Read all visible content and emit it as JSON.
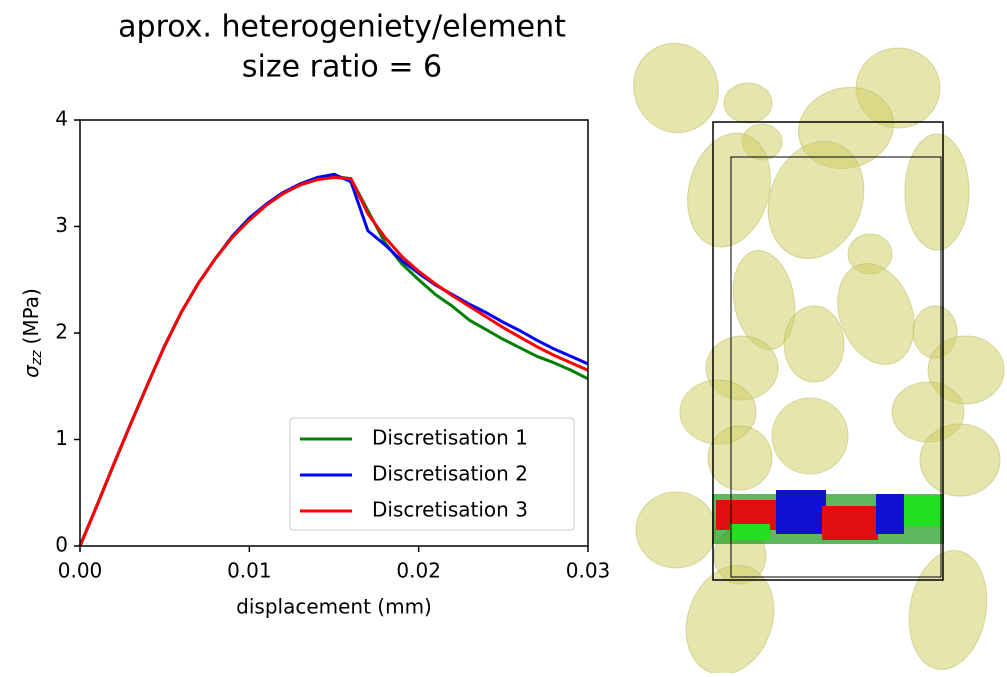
{
  "chart_data": {
    "type": "line",
    "title": [
      "aprox. heterogeniety/element",
      "size ratio = 6"
    ],
    "xlabel": "displacement (mm)",
    "ylabel": [
      "σ",
      "zz",
      "(MPa)"
    ],
    "x": [
      0,
      0.001,
      0.002,
      0.003,
      0.004,
      0.005,
      0.006,
      0.007,
      0.008,
      0.009,
      0.01,
      0.011,
      0.012,
      0.013,
      0.014,
      0.015,
      0.016,
      0.017,
      0.018,
      0.019,
      0.02,
      0.021,
      0.022,
      0.023,
      0.024,
      0.025,
      0.026,
      0.027,
      0.028,
      0.029,
      0.03
    ],
    "series": [
      {
        "name": "Discretisation 1",
        "color": "#008000",
        "values": [
          0,
          0.38,
          0.77,
          1.15,
          1.52,
          1.88,
          2.2,
          2.47,
          2.7,
          2.9,
          3.06,
          3.2,
          3.31,
          3.39,
          3.44,
          3.47,
          3.45,
          3.15,
          2.85,
          2.65,
          2.5,
          2.36,
          2.25,
          2.12,
          2.03,
          1.94,
          1.86,
          1.78,
          1.72,
          1.65,
          1.57
        ]
      },
      {
        "name": "Discretisation 2",
        "color": "#0000ff",
        "values": [
          0,
          0.38,
          0.77,
          1.15,
          1.52,
          1.88,
          2.2,
          2.47,
          2.7,
          2.91,
          3.08,
          3.21,
          3.32,
          3.4,
          3.46,
          3.49,
          3.42,
          2.96,
          2.83,
          2.68,
          2.56,
          2.45,
          2.36,
          2.27,
          2.19,
          2.1,
          2.02,
          1.93,
          1.85,
          1.78,
          1.71
        ]
      },
      {
        "name": "Discretisation 3",
        "color": "#ff0000",
        "values": [
          0,
          0.38,
          0.77,
          1.15,
          1.52,
          1.88,
          2.2,
          2.47,
          2.7,
          2.9,
          3.06,
          3.2,
          3.31,
          3.39,
          3.44,
          3.46,
          3.45,
          3.12,
          2.9,
          2.72,
          2.58,
          2.46,
          2.35,
          2.25,
          2.15,
          2.05,
          1.96,
          1.87,
          1.79,
          1.72,
          1.65
        ]
      }
    ],
    "xlim": [
      0,
      0.03
    ],
    "ylim": [
      0,
      4
    ],
    "xticks": [
      {
        "value": 0,
        "label": "0.00"
      },
      0.01,
      0.02,
      0.03
    ],
    "yticks": [
      0,
      1,
      2,
      3,
      4
    ],
    "grid": false,
    "legend": "lower right"
  }
}
